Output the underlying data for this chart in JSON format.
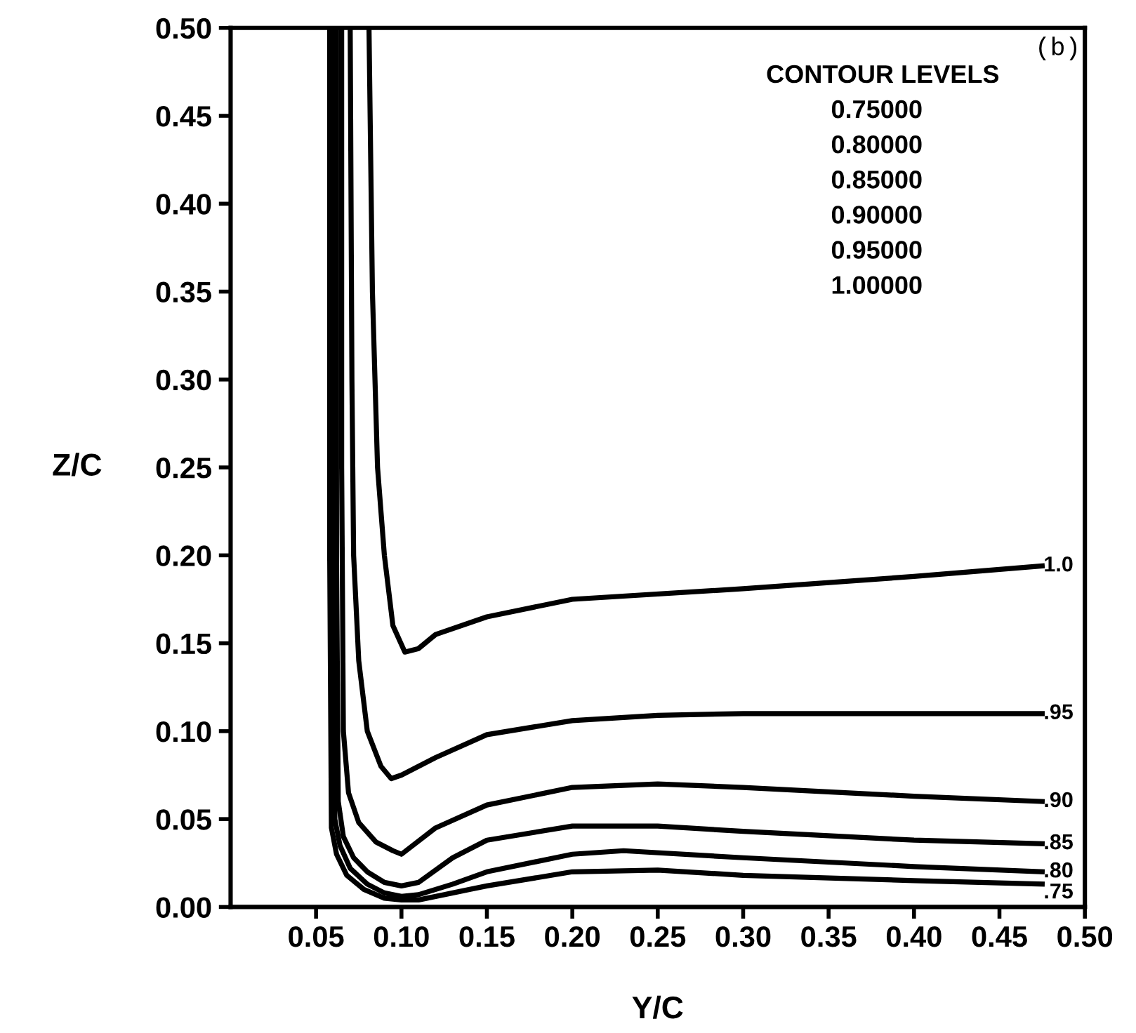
{
  "chart_data": {
    "type": "line",
    "xlabel": "Y/C",
    "ylabel": "Z/C",
    "xlim": [
      0,
      0.5
    ],
    "ylim": [
      0,
      0.5
    ],
    "xticks": [
      0.05,
      {
        "value": 0.1,
        "label": "0.10"
      },
      0.15,
      {
        "value": 0.2,
        "label": "0.20"
      },
      0.25,
      {
        "value": 0.3,
        "label": "0.30"
      },
      0.35,
      {
        "value": 0.4,
        "label": "0.40"
      },
      0.45,
      {
        "value": 0.5,
        "label": "0.50"
      }
    ],
    "yticks": [
      {
        "value": 0,
        "label": "0.00"
      },
      0.05,
      {
        "value": 0.1,
        "label": "0.10"
      },
      0.15,
      {
        "value": 0.2,
        "label": "0.20"
      },
      0.25,
      {
        "value": 0.3,
        "label": "0.30"
      },
      0.35,
      {
        "value": 0.4,
        "label": "0.40"
      },
      0.45,
      {
        "value": 0.5,
        "label": "0.50"
      }
    ],
    "grid": false,
    "legend": false,
    "marker": "none",
    "line_style": "solid",
    "annotations": [
      "(b)",
      "CONTOUR LEVELS",
      "0.75000",
      "0.80000",
      "0.85000",
      "0.90000",
      "0.95000",
      "1.00000"
    ],
    "series": [
      {
        "name": "1.0",
        "color": "#000000",
        "x": [
          0.081,
          0.083,
          0.086,
          0.09,
          0.095,
          0.102,
          0.11,
          0.12,
          0.15,
          0.2,
          0.3,
          0.4,
          0.475
        ],
        "values": [
          0.5,
          0.35,
          0.25,
          0.2,
          0.16,
          0.145,
          0.147,
          0.155,
          0.165,
          0.175,
          0.181,
          0.188,
          0.194
        ]
      },
      {
        "name": ".95",
        "color": "#000000",
        "x": [
          0.07,
          0.071,
          0.072,
          0.075,
          0.08,
          0.088,
          0.094,
          0.1,
          0.12,
          0.15,
          0.2,
          0.25,
          0.3,
          0.4,
          0.475
        ],
        "values": [
          0.5,
          0.3,
          0.2,
          0.14,
          0.1,
          0.08,
          0.073,
          0.075,
          0.085,
          0.098,
          0.106,
          0.109,
          0.11,
          0.11,
          0.11
        ]
      },
      {
        "name": ".90",
        "color": "#000000",
        "x": [
          0.065,
          0.065,
          0.066,
          0.069,
          0.075,
          0.085,
          0.095,
          0.1,
          0.12,
          0.15,
          0.2,
          0.25,
          0.3,
          0.4,
          0.475
        ],
        "values": [
          0.5,
          0.25,
          0.1,
          0.065,
          0.048,
          0.037,
          0.032,
          0.03,
          0.045,
          0.058,
          0.068,
          0.07,
          0.068,
          0.063,
          0.06
        ]
      },
      {
        "name": ".85",
        "color": "#000000",
        "x": [
          0.062,
          0.062,
          0.063,
          0.066,
          0.072,
          0.08,
          0.09,
          0.1,
          0.11,
          0.13,
          0.15,
          0.2,
          0.25,
          0.3,
          0.4,
          0.475
        ],
        "values": [
          0.5,
          0.2,
          0.06,
          0.04,
          0.028,
          0.02,
          0.014,
          0.012,
          0.014,
          0.028,
          0.038,
          0.046,
          0.046,
          0.043,
          0.038,
          0.036
        ]
      },
      {
        "name": ".80",
        "color": "#000000",
        "x": [
          0.06,
          0.06,
          0.061,
          0.064,
          0.07,
          0.08,
          0.09,
          0.1,
          0.11,
          0.13,
          0.15,
          0.2,
          0.23,
          0.3,
          0.4,
          0.475
        ],
        "values": [
          0.5,
          0.2,
          0.05,
          0.035,
          0.022,
          0.013,
          0.008,
          0.006,
          0.007,
          0.013,
          0.02,
          0.03,
          0.032,
          0.028,
          0.023,
          0.02
        ]
      },
      {
        "name": ".75",
        "color": "#000000",
        "x": [
          0.058,
          0.058,
          0.059,
          0.062,
          0.068,
          0.078,
          0.09,
          0.1,
          0.11,
          0.13,
          0.15,
          0.2,
          0.25,
          0.3,
          0.4,
          0.475
        ],
        "values": [
          0.5,
          0.2,
          0.045,
          0.03,
          0.018,
          0.01,
          0.005,
          0.004,
          0.004,
          0.008,
          0.012,
          0.02,
          0.021,
          0.018,
          0.015,
          0.013
        ]
      }
    ]
  }
}
